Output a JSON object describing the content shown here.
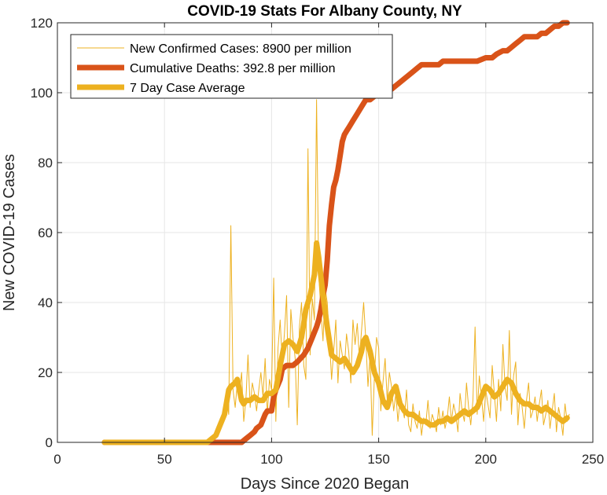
{
  "chart_data": {
    "type": "line",
    "title": "COVID-19 Stats For Albany County, NY",
    "xlabel": "Days Since 2020 Began",
    "ylabel": "New COVID-19 Cases",
    "xlim": [
      0,
      250
    ],
    "ylim": [
      0,
      120
    ],
    "xticks": [
      0,
      50,
      100,
      150,
      200,
      250
    ],
    "yticks": [
      0,
      20,
      40,
      60,
      80,
      100,
      120
    ],
    "grid": true,
    "legend_position": "top-left",
    "series": [
      {
        "name": "New Confirmed Cases: 8900 per million",
        "color": "#EDB120",
        "style": "thin",
        "x": [
          22,
          70,
          74,
          76,
          78,
          79,
          80,
          81,
          82,
          83,
          84,
          85,
          86,
          87,
          88,
          89,
          90,
          91,
          92,
          93,
          94,
          95,
          96,
          97,
          98,
          99,
          100,
          101,
          102,
          103,
          104,
          105,
          106,
          107,
          108,
          109,
          110,
          111,
          112,
          113,
          114,
          115,
          116,
          117,
          118,
          119,
          120,
          121,
          122,
          123,
          124,
          125,
          126,
          127,
          128,
          129,
          130,
          131,
          132,
          133,
          134,
          135,
          136,
          137,
          138,
          139,
          140,
          141,
          142,
          143,
          144,
          145,
          146,
          147,
          148,
          149,
          150,
          151,
          152,
          153,
          154,
          155,
          156,
          157,
          158,
          159,
          160,
          161,
          162,
          163,
          164,
          165,
          166,
          167,
          168,
          169,
          170,
          171,
          172,
          173,
          174,
          175,
          176,
          177,
          178,
          179,
          180,
          181,
          182,
          183,
          184,
          185,
          186,
          187,
          188,
          189,
          190,
          191,
          192,
          193,
          194,
          195,
          196,
          197,
          198,
          199,
          200,
          201,
          202,
          203,
          204,
          205,
          206,
          207,
          208,
          209,
          210,
          211,
          212,
          213,
          214,
          215,
          216,
          217,
          218,
          219,
          220,
          221,
          222,
          223,
          224,
          225,
          226,
          227,
          228,
          229,
          230,
          231,
          232,
          233,
          234,
          235,
          236,
          237,
          238,
          239
        ],
        "y": [
          0,
          0,
          2,
          5,
          10,
          13,
          8,
          62,
          15,
          10,
          17,
          14,
          20,
          6,
          12,
          25,
          10,
          17,
          14,
          9,
          15,
          20,
          13,
          24,
          8,
          18,
          15,
          47,
          6,
          27,
          35,
          23,
          31,
          42,
          10,
          38,
          30,
          24,
          5,
          33,
          40,
          22,
          18,
          84,
          25,
          41,
          35,
          98,
          48,
          38,
          29,
          44,
          40,
          30,
          18,
          26,
          35,
          17,
          29,
          25,
          21,
          31,
          26,
          17,
          35,
          28,
          34,
          24,
          32,
          40,
          29,
          16,
          25,
          2,
          19,
          30,
          27,
          9,
          17,
          24,
          12,
          20,
          16,
          9,
          14,
          6,
          12,
          10,
          7,
          15,
          5,
          3,
          11,
          6,
          4,
          9,
          2,
          7,
          5,
          12,
          4,
          8,
          6,
          3,
          10,
          5,
          9,
          4,
          7,
          13,
          6,
          11,
          8,
          3,
          14,
          9,
          6,
          17,
          10,
          5,
          12,
          33,
          8,
          19,
          13,
          6,
          15,
          11,
          7,
          22,
          14,
          6,
          18,
          9,
          28,
          16,
          12,
          32,
          8,
          19,
          23,
          5,
          14,
          10,
          4,
          12,
          17,
          7,
          9,
          13,
          6,
          11,
          15,
          5,
          8,
          12,
          4,
          9,
          14,
          3,
          10,
          7,
          2,
          11,
          6,
          8
        ],
        "note_values_estimated": true
      },
      {
        "name": "Cumulative Deaths: 392.8 per million",
        "color": "#D95319",
        "style": "thick",
        "x": [
          22,
          86,
          88,
          90,
          92,
          93,
          95,
          97,
          98,
          100,
          101,
          102,
          104,
          105,
          107,
          108,
          110,
          112,
          115,
          117,
          119,
          121,
          122,
          123,
          124,
          125,
          126,
          127,
          128,
          129,
          130,
          131,
          132,
          133,
          134,
          135,
          136,
          137,
          138,
          140,
          142,
          144,
          146,
          148,
          150,
          152,
          154,
          156,
          158,
          160,
          162,
          164,
          166,
          168,
          170,
          172,
          174,
          176,
          178,
          180,
          184,
          188,
          192,
          196,
          200,
          203,
          205,
          208,
          210,
          212,
          214,
          216,
          218,
          220,
          222,
          224,
          226,
          228,
          230,
          232,
          234,
          236,
          238
        ],
        "y": [
          0,
          0,
          1,
          2,
          3,
          4,
          5,
          8,
          9,
          9,
          13,
          15,
          18,
          21,
          22,
          22,
          22,
          23,
          25,
          27,
          30,
          33,
          35,
          38,
          42,
          45,
          52,
          62,
          68,
          73,
          75,
          78,
          82,
          86,
          88,
          89,
          90,
          91,
          92,
          94,
          96,
          98,
          98,
          99,
          100,
          100,
          101,
          101,
          102,
          103,
          104,
          105,
          106,
          107,
          108,
          108,
          108,
          108,
          108,
          109,
          109,
          109,
          109,
          109,
          110,
          110,
          111,
          112,
          112,
          113,
          114,
          115,
          116,
          116,
          116,
          116,
          117,
          117,
          118,
          119,
          119,
          120,
          120
        ],
        "note_values_estimated": true
      },
      {
        "name": "7 Day Case Average",
        "color": "#EDB120",
        "style": "thick",
        "x": [
          22,
          70,
          74,
          76,
          78,
          80,
          81,
          83,
          84,
          85,
          86,
          87,
          88,
          90,
          92,
          94,
          96,
          98,
          100,
          102,
          104,
          106,
          108,
          110,
          112,
          114,
          116,
          118,
          120,
          121,
          122,
          124,
          126,
          128,
          130,
          132,
          134,
          136,
          138,
          140,
          142,
          143,
          144,
          146,
          148,
          150,
          152,
          154,
          156,
          158,
          160,
          162,
          164,
          166,
          168,
          170,
          172,
          174,
          176,
          178,
          180,
          182,
          184,
          186,
          188,
          190,
          192,
          194,
          196,
          198,
          200,
          202,
          204,
          206,
          208,
          210,
          212,
          214,
          216,
          218,
          220,
          222,
          224,
          226,
          228,
          230,
          232,
          234,
          236,
          238
        ],
        "y": [
          0,
          0,
          2,
          5,
          8,
          15,
          16,
          17,
          18,
          15,
          12,
          11,
          12,
          12,
          13,
          12,
          12,
          14,
          14,
          15,
          22,
          28,
          29,
          28,
          26,
          30,
          38,
          42,
          48,
          57,
          53,
          42,
          33,
          25,
          24,
          23,
          24,
          22,
          20,
          22,
          26,
          29,
          30,
          26,
          20,
          17,
          12,
          10,
          14,
          16,
          11,
          9,
          8,
          8,
          7,
          6,
          6,
          5,
          5,
          6,
          6,
          7,
          6,
          7,
          8,
          9,
          8,
          9,
          10,
          13,
          16,
          15,
          13,
          14,
          16,
          18,
          17,
          14,
          12,
          11,
          11,
          10,
          10,
          9,
          10,
          9,
          8,
          7,
          6,
          7
        ],
        "note_values_estimated": true
      }
    ]
  },
  "legend": {
    "entries": [
      "New Confirmed Cases: 8900 per million",
      "Cumulative Deaths: 392.8 per million",
      "7 Day Case Average"
    ]
  }
}
